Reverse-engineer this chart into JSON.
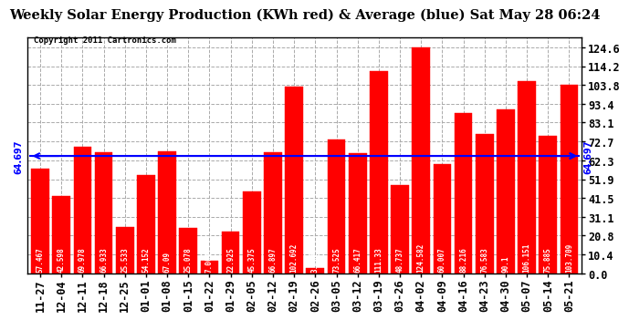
{
  "title": "Weekly Solar Energy Production (KWh red) & Average (blue) Sat May 28 06:24",
  "copyright": "Copyright 2011 Cartronics.com",
  "categories": [
    "11-27",
    "12-04",
    "12-11",
    "12-18",
    "12-25",
    "01-01",
    "01-08",
    "01-15",
    "01-22",
    "01-29",
    "02-05",
    "02-12",
    "02-19",
    "02-26",
    "03-05",
    "03-12",
    "03-19",
    "03-26",
    "04-02",
    "04-09",
    "04-16",
    "04-23",
    "04-30",
    "05-07",
    "05-14",
    "05-21"
  ],
  "values": [
    57.467,
    42.598,
    69.978,
    66.933,
    25.533,
    54.152,
    67.09,
    25.078,
    7.009,
    22.925,
    45.375,
    66.897,
    102.692,
    3.152,
    73.525,
    66.417,
    111.33,
    48.737,
    124.582,
    60.007,
    88.216,
    76.583,
    90.1,
    106.151,
    75.885,
    103.709
  ],
  "average": 64.697,
  "average_label": "64.697",
  "bar_color": "#ff0000",
  "avg_line_color": "#0000ff",
  "background_color": "#ffffff",
  "plot_bg_color": "#ffffff",
  "ylim": [
    0,
    130
  ],
  "yticks": [
    0.0,
    10.4,
    20.8,
    31.1,
    41.5,
    51.9,
    62.3,
    72.7,
    83.1,
    93.4,
    103.8,
    114.2,
    124.6
  ],
  "title_fontsize": 10.5,
  "copyright_fontsize": 6.5,
  "bar_label_fontsize": 5.5,
  "axis_tick_fontsize": 8.5
}
